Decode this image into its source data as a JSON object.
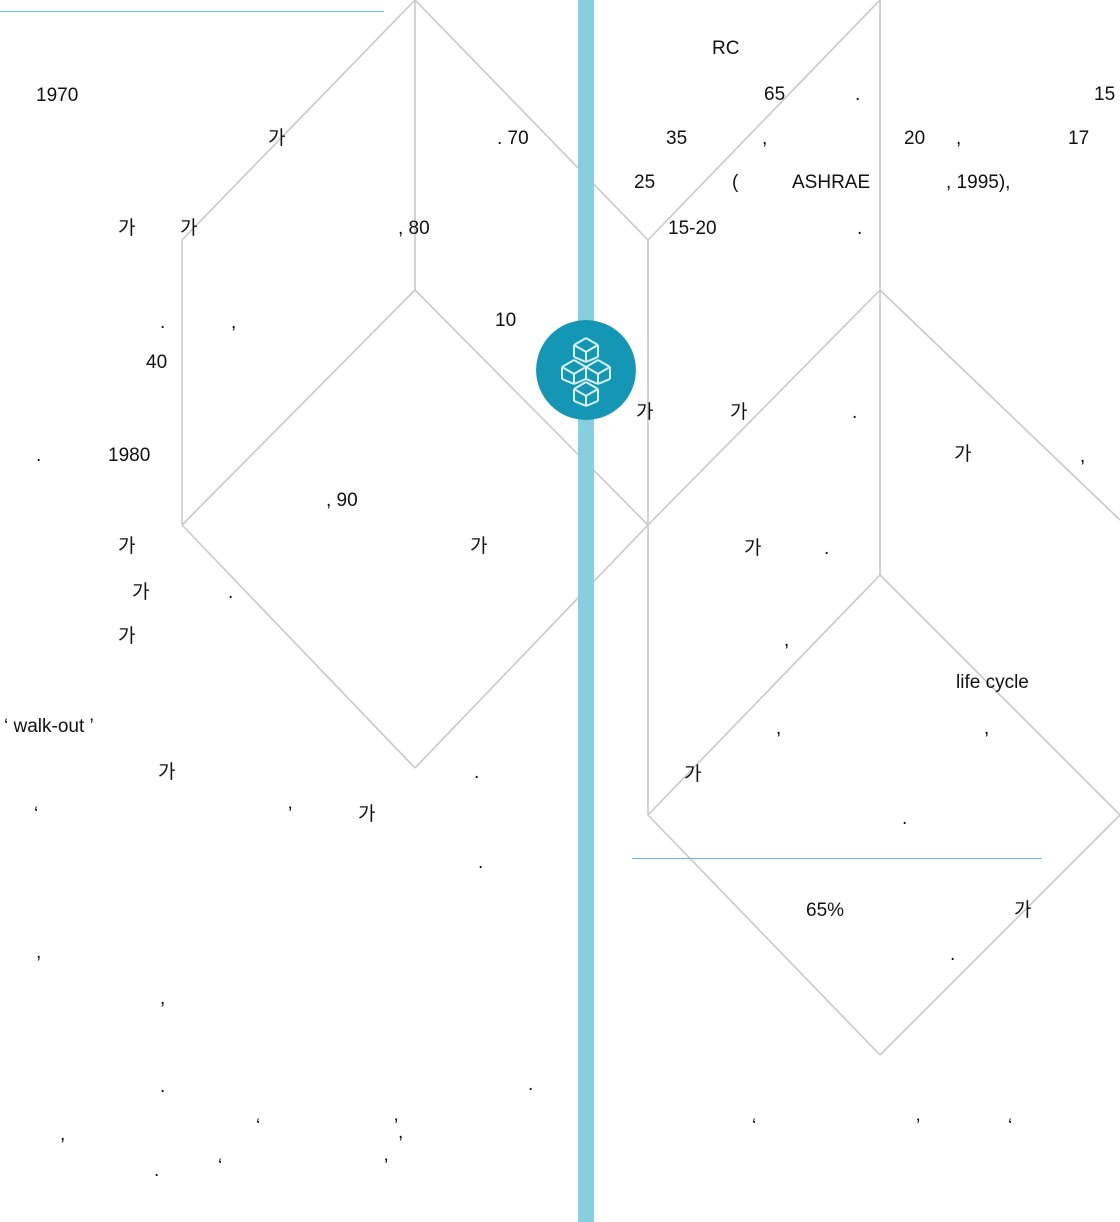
{
  "colors": {
    "accent": "#86cfe0",
    "rule": "#67c0d5",
    "emblem_fill": "#1496b5",
    "emblem_line": "#d8f0f6",
    "wireframe": "#c9c9c9",
    "text": "#111111"
  },
  "decor": {
    "emblem": "cubes-logo-icon",
    "background": "cube-wireframe-pattern"
  },
  "left_column": {
    "fragments": [
      "1970",
      "가",
      ". 70",
      "가",
      "가",
      ", 80",
      ".",
      ",",
      "10",
      "40",
      ".",
      "1980",
      ", 90",
      "가",
      "가",
      "가",
      ".",
      "가",
      "‘ walk-out ’",
      "가",
      ".",
      "‘",
      "’",
      "가",
      ".",
      ",",
      ",",
      ".",
      ".",
      ",",
      "‘",
      "’",
      ",",
      ".",
      "‘",
      "’"
    ]
  },
  "right_column": {
    "fragments": [
      "RC",
      "65",
      ".",
      "15",
      "35",
      ",",
      "20",
      ",",
      "17",
      "25",
      "(",
      "ASHRAE",
      ", 1995),",
      "15-20",
      ".",
      "가",
      "가",
      ".",
      "가",
      ",",
      "가",
      ".",
      ",",
      "life cycle",
      ",",
      ",",
      "가",
      ".",
      "65%",
      "가",
      ".",
      "‘",
      "’",
      "‘"
    ]
  }
}
